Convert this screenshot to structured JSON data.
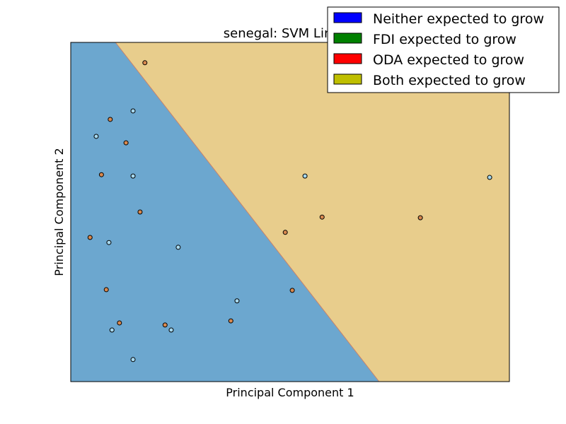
{
  "chart_data": {
    "type": "scatter",
    "title": "senegal: SVM Linear-",
    "xlabel": "Principal Component 1",
    "ylabel": "Principal Component 2",
    "xlim": [
      0,
      100
    ],
    "ylim": [
      0,
      100
    ],
    "grid": false,
    "legend_position": "top-right",
    "legend": [
      {
        "label": "Neither expected to grow",
        "color": "#0000ff"
      },
      {
        "label": "FDI expected to grow",
        "color": "#008000"
      },
      {
        "label": "ODA expected to grow",
        "color": "#ff0000"
      },
      {
        "label": "Both expected to grow",
        "color": "#bfbf00"
      }
    ],
    "regions": [
      {
        "name": "Neither expected to grow",
        "fill": "#6ca7cf"
      },
      {
        "name": "Both expected to grow",
        "fill": "#e8cd8c"
      }
    ],
    "decision_boundary": [
      [
        10.2,
        100
      ],
      [
        70.3,
        0
      ]
    ],
    "point_colors": {
      "light_blue": "#a6d8ee",
      "orange": "#d8884e"
    },
    "points": [
      {
        "x": 16.9,
        "y": 94.0,
        "color": "orange"
      },
      {
        "x": 14.2,
        "y": 79.8,
        "color": "light_blue"
      },
      {
        "x": 9.0,
        "y": 77.3,
        "color": "orange"
      },
      {
        "x": 5.8,
        "y": 72.3,
        "color": "light_blue"
      },
      {
        "x": 12.6,
        "y": 70.4,
        "color": "orange"
      },
      {
        "x": 7.0,
        "y": 61.0,
        "color": "orange"
      },
      {
        "x": 14.2,
        "y": 60.6,
        "color": "light_blue"
      },
      {
        "x": 15.8,
        "y": 50.0,
        "color": "orange"
      },
      {
        "x": 4.4,
        "y": 42.5,
        "color": "orange"
      },
      {
        "x": 8.7,
        "y": 41.0,
        "color": "light_blue"
      },
      {
        "x": 24.5,
        "y": 39.6,
        "color": "light_blue"
      },
      {
        "x": 8.1,
        "y": 27.1,
        "color": "orange"
      },
      {
        "x": 11.1,
        "y": 17.3,
        "color": "orange"
      },
      {
        "x": 9.4,
        "y": 15.2,
        "color": "light_blue"
      },
      {
        "x": 21.5,
        "y": 16.7,
        "color": "orange"
      },
      {
        "x": 22.9,
        "y": 15.2,
        "color": "light_blue"
      },
      {
        "x": 14.2,
        "y": 6.5,
        "color": "light_blue"
      },
      {
        "x": 37.9,
        "y": 23.8,
        "color": "light_blue"
      },
      {
        "x": 36.5,
        "y": 17.9,
        "color": "orange"
      },
      {
        "x": 53.4,
        "y": 60.6,
        "color": "light_blue"
      },
      {
        "x": 95.5,
        "y": 60.2,
        "color": "light_blue"
      },
      {
        "x": 57.3,
        "y": 48.5,
        "color": "orange"
      },
      {
        "x": 79.7,
        "y": 48.3,
        "color": "orange"
      },
      {
        "x": 48.9,
        "y": 44.0,
        "color": "orange"
      },
      {
        "x": 50.5,
        "y": 26.9,
        "color": "orange"
      }
    ]
  }
}
